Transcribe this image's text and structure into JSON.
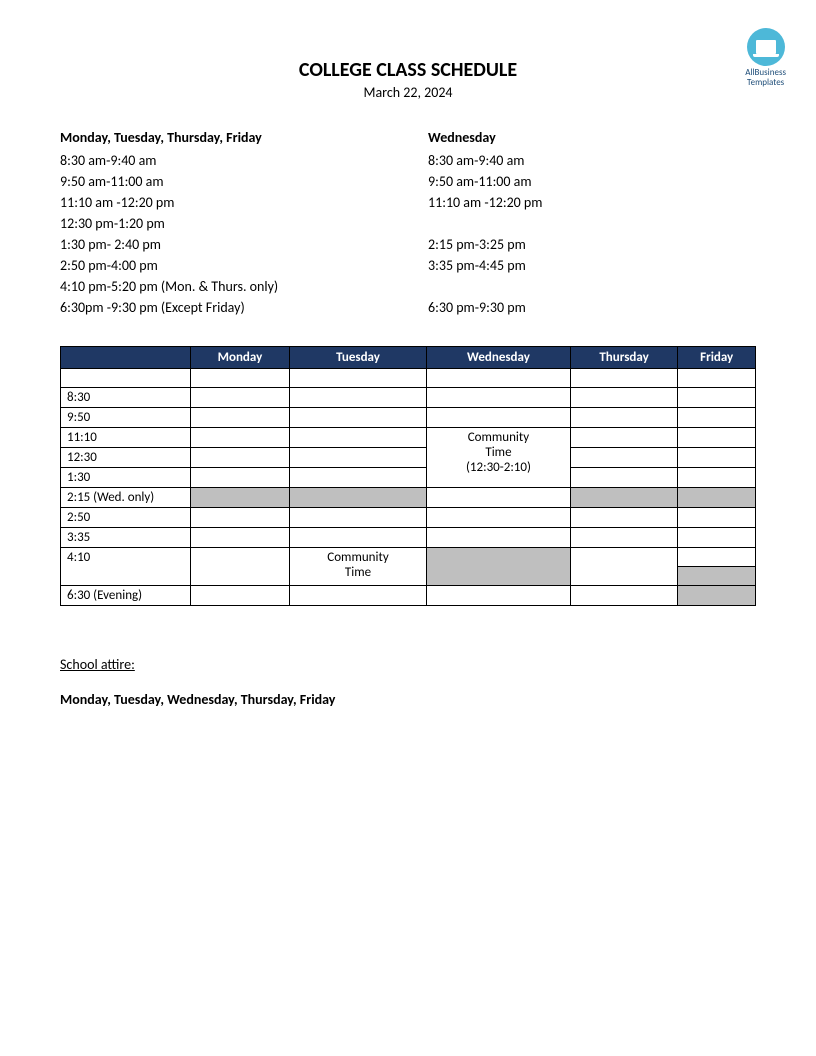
{
  "logo": {
    "line1": "AllBusiness",
    "line2": "Templates"
  },
  "title": "COLLEGE CLASS SCHEDULE",
  "date": "March 22, 2024",
  "slots": {
    "left": {
      "heading": "Monday, Tuesday, Thursday, Friday",
      "lines": [
        "8:30 am-9:40 am",
        "9:50 am-11:00 am",
        "11:10 am  -12:20 pm",
        "12:30 pm-1:20 pm",
        "1:30 pm- 2:40 pm",
        "2:50 pm-4:00 pm",
        "4:10 pm-5:20 pm (Mon. & Thurs. only)",
        "6:30pm -9:30 pm (Except Friday)"
      ]
    },
    "right": {
      "heading": "Wednesday",
      "lines": [
        "8:30 am-9:40 am",
        "9:50 am-11:00 am",
        "11:10 am  -12:20 pm",
        "",
        "2:15 pm-3:25 pm",
        "3:35 pm-4:45 pm",
        "",
        "6:30 pm-9:30 pm"
      ]
    }
  },
  "table": {
    "header_bg": "#1f3864",
    "header_color": "#ffffff",
    "border_color": "#000000",
    "shaded_color": "#bfbfbf",
    "columns": [
      "",
      "Monday",
      "Tuesday",
      "Wednesday",
      "Thursday",
      "Friday"
    ],
    "time_labels": {
      "r1": "",
      "r2": "8:30",
      "r3": "9:50",
      "r4": "11:10",
      "r5": "12:30",
      "r6": "1:30",
      "r7": "2:15  (Wed. only)",
      "r8": "2:50",
      "r9": "3:35",
      "r10": "4:10",
      "r11": "6:30 (Evening)"
    },
    "wed_community_l1": "Community",
    "wed_community_l2": "Time",
    "wed_community_l3": "(12:30-2:10)",
    "tue_community_l1": "Community",
    "tue_community_l2": "Time"
  },
  "attire": {
    "label": "School attire:",
    "days": "Monday, Tuesday, Wednesday, Thursday, Friday"
  }
}
